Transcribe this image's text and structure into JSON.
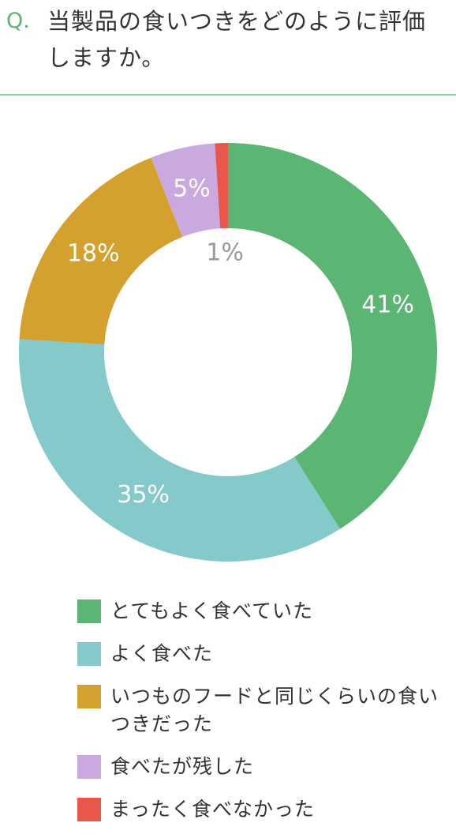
{
  "chart_data": {
    "type": "donut",
    "title_marker": "Q.",
    "title": "当製品の食いつきをどのように評価しますか。",
    "categories": [
      "とてもよく食べていた",
      "よく食べた",
      "いつものフードと同じくらいの食いつきだった",
      "食べたが残した",
      "まったく食べなかった"
    ],
    "values": [
      41,
      35,
      18,
      5,
      1
    ],
    "value_labels": [
      "41%",
      "35%",
      "18%",
      "5%",
      "1%"
    ],
    "colors": [
      "#5bb573",
      "#84cacb",
      "#d4a12f",
      "#c9a9e0",
      "#e9574a"
    ]
  }
}
